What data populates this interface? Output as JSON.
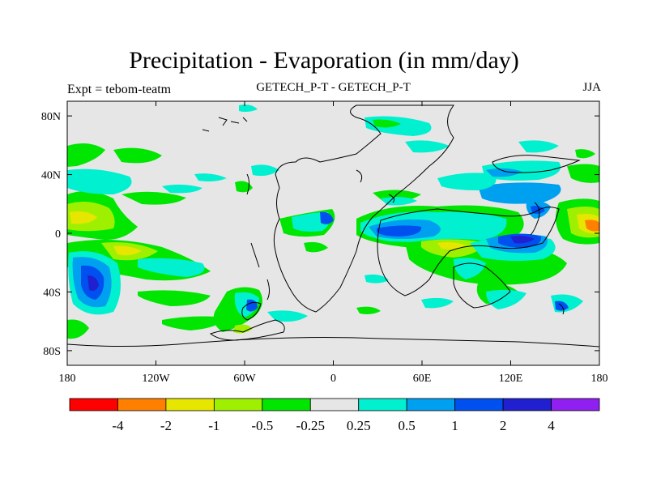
{
  "title": "Precipitation - Evaporation (in mm/day)",
  "left_string": "Expt = tebom-teatm",
  "center_string": "GETECH_P-T - GETECH_P-T",
  "right_string": "JJA",
  "lat_ticks": [
    {
      "value": 80,
      "label": "80N"
    },
    {
      "value": 40,
      "label": "40N"
    },
    {
      "value": 0,
      "label": "0"
    },
    {
      "value": -40,
      "label": "40S"
    },
    {
      "value": -80,
      "label": "80S"
    }
  ],
  "lon_ticks": [
    {
      "value": -180,
      "label": "180"
    },
    {
      "value": -120,
      "label": "120W"
    },
    {
      "value": -60,
      "label": "60W"
    },
    {
      "value": 0,
      "label": "0"
    },
    {
      "value": 60,
      "label": "60E"
    },
    {
      "value": 120,
      "label": "120E"
    },
    {
      "value": 180,
      "label": "180"
    }
  ],
  "colorbar": {
    "colors": [
      "#ff0000",
      "#ff8000",
      "#e6e600",
      "#9ff000",
      "#00e600",
      "#e6e6e6",
      "#00f0d0",
      "#00a0f0",
      "#0050f0",
      "#2020d0",
      "#9020f0"
    ],
    "labels": [
      "-4",
      "-2",
      "-1",
      "-0.5",
      "-0.25",
      "0.25",
      "0.5",
      "1",
      "2",
      "4"
    ]
  },
  "map_colors": {
    "background": "#e6e6e6",
    "coast": "#000000"
  }
}
